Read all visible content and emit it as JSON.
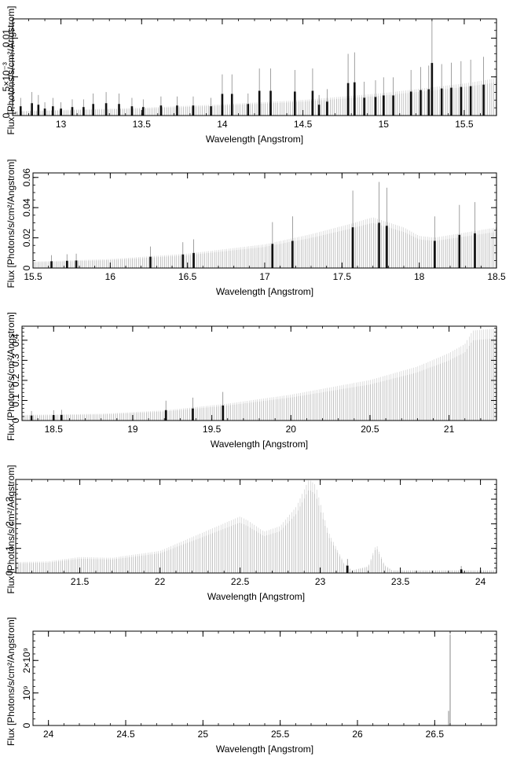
{
  "chart_data": [
    {
      "type": "bar",
      "xlabel": "Wavelength [Angstrom]",
      "ylabel": "Flux [Photons/s/cm²/Angstrom]",
      "xlim": [
        12.7,
        15.7
      ],
      "ylim": [
        0,
        0.0125
      ],
      "xticks": [
        13,
        13.5,
        14,
        14.5,
        15,
        15.5
      ],
      "xtick_labels": [
        "13",
        "13.5",
        "14",
        "14.5",
        "15",
        "15.5"
      ],
      "yticks": [
        0,
        0.005,
        0.01
      ],
      "ytick_labels": [
        "0",
        "5×10⁻³",
        "0.01"
      ],
      "x_minor_step": 0.1,
      "y_minor_step": 0.001,
      "continuum": [
        [
          12.7,
          0.0005
        ],
        [
          13.5,
          0.0009
        ],
        [
          14.0,
          0.0013
        ],
        [
          14.5,
          0.0018
        ],
        [
          15.0,
          0.0026
        ],
        [
          15.5,
          0.0037
        ],
        [
          15.7,
          0.0043
        ]
      ],
      "lines": [
        [
          12.75,
          0.0012
        ],
        [
          12.82,
          0.0016
        ],
        [
          12.86,
          0.0014
        ],
        [
          12.9,
          0.0009
        ],
        [
          12.95,
          0.0012
        ],
        [
          13.0,
          0.0009
        ],
        [
          13.07,
          0.0011
        ],
        [
          13.14,
          0.0011
        ],
        [
          13.2,
          0.0015
        ],
        [
          13.28,
          0.0016
        ],
        [
          13.36,
          0.0015
        ],
        [
          13.44,
          0.0012
        ],
        [
          13.51,
          0.0011
        ],
        [
          13.62,
          0.0013
        ],
        [
          13.72,
          0.0013
        ],
        [
          13.82,
          0.0013
        ],
        [
          13.93,
          0.0012
        ],
        [
          14.0,
          0.0028
        ],
        [
          14.06,
          0.0028
        ],
        [
          14.16,
          0.0015
        ],
        [
          14.23,
          0.0032
        ],
        [
          14.3,
          0.0032
        ],
        [
          14.45,
          0.0031
        ],
        [
          14.56,
          0.0032
        ],
        [
          14.6,
          0.0014
        ],
        [
          14.65,
          0.0018
        ],
        [
          14.78,
          0.0042
        ],
        [
          14.82,
          0.0043
        ],
        [
          14.88,
          0.0023
        ],
        [
          14.95,
          0.0024
        ],
        [
          15.0,
          0.0026
        ],
        [
          15.06,
          0.0026
        ],
        [
          15.17,
          0.0031
        ],
        [
          15.23,
          0.0033
        ],
        [
          15.28,
          0.0034
        ],
        [
          15.3,
          0.0068
        ],
        [
          15.36,
          0.0035
        ],
        [
          15.42,
          0.0036
        ],
        [
          15.48,
          0.0037
        ],
        [
          15.54,
          0.0038
        ],
        [
          15.62,
          0.004
        ]
      ]
    },
    {
      "type": "bar",
      "xlabel": "Wavelength [Angstrom]",
      "ylabel": "Flux [Photons/s/cm²/Angstrom]",
      "xlim": [
        15.5,
        18.5
      ],
      "ylim": [
        0,
        0.063
      ],
      "xticks": [
        15.5,
        16,
        16.5,
        17,
        17.5,
        18,
        18.5
      ],
      "xtick_labels": [
        "15.5",
        "16",
        "16.5",
        "17",
        "17.5",
        "18",
        "18.5"
      ],
      "yticks": [
        0,
        0.02,
        0.04,
        0.06
      ],
      "ytick_labels": [
        "0",
        "0.02",
        "0.04",
        "0.06"
      ],
      "x_minor_step": 0.1,
      "y_minor_step": 0.005,
      "continuum": [
        [
          15.5,
          0.0038
        ],
        [
          16.0,
          0.0053
        ],
        [
          16.5,
          0.0085
        ],
        [
          17.0,
          0.014
        ],
        [
          17.3,
          0.02
        ],
        [
          17.55,
          0.026
        ],
        [
          17.7,
          0.03
        ],
        [
          17.8,
          0.027
        ],
        [
          17.9,
          0.024
        ],
        [
          18.0,
          0.019
        ],
        [
          18.1,
          0.018
        ],
        [
          18.5,
          0.024
        ]
      ],
      "lines": [
        [
          15.62,
          0.0045
        ],
        [
          15.72,
          0.0048
        ],
        [
          15.78,
          0.005
        ],
        [
          16.26,
          0.0075
        ],
        [
          16.47,
          0.009
        ],
        [
          16.54,
          0.01
        ],
        [
          17.05,
          0.016
        ],
        [
          17.18,
          0.018
        ],
        [
          17.57,
          0.027
        ],
        [
          17.74,
          0.03
        ],
        [
          17.79,
          0.028
        ],
        [
          18.1,
          0.018
        ],
        [
          18.26,
          0.022
        ],
        [
          18.36,
          0.023
        ]
      ]
    },
    {
      "type": "bar",
      "xlabel": "Wavelength [Angstrom]",
      "ylabel": "Flux [Photons/s/cm²/Angstrom]",
      "xlim": [
        18.3,
        21.3
      ],
      "ylim": [
        0,
        0.47
      ],
      "xticks": [
        18.5,
        19,
        19.5,
        20,
        20.5,
        21
      ],
      "xtick_labels": [
        "18.5",
        "19",
        "19.5",
        "20",
        "20.5",
        "21"
      ],
      "yticks": [
        0,
        0.1,
        0.2,
        0.3,
        0.4
      ],
      "ytick_labels": [
        "0",
        "0.1",
        "0.2",
        "0.3",
        "0.4"
      ],
      "x_minor_step": 0.1,
      "y_minor_step": 0.02,
      "continuum": [
        [
          18.3,
          0.025
        ],
        [
          18.8,
          0.03
        ],
        [
          19.2,
          0.045
        ],
        [
          19.6,
          0.075
        ],
        [
          20.0,
          0.115
        ],
        [
          20.5,
          0.18
        ],
        [
          20.8,
          0.24
        ],
        [
          21.0,
          0.3
        ],
        [
          21.1,
          0.34
        ],
        [
          21.15,
          0.4
        ],
        [
          21.3,
          0.41
        ]
      ],
      "lines": [
        [
          18.36,
          0.025
        ],
        [
          18.5,
          0.027
        ],
        [
          18.55,
          0.028
        ],
        [
          19.21,
          0.052
        ],
        [
          19.38,
          0.06
        ],
        [
          19.57,
          0.075
        ]
      ]
    },
    {
      "type": "bar",
      "xlabel": "Wavelength [Angstrom]",
      "ylabel": "Flux [Photons/s/cm²/Angstrom]",
      "xlim": [
        21.1,
        24.1
      ],
      "ylim": [
        0,
        3.8
      ],
      "xticks": [
        21.5,
        22,
        22.5,
        23,
        23.5,
        24
      ],
      "xtick_labels": [
        "21.5",
        "22",
        "22.5",
        "23",
        "23.5",
        "24"
      ],
      "yticks": [
        0,
        1,
        2,
        3
      ],
      "ytick_labels": [
        "0",
        "1",
        "2",
        "3"
      ],
      "x_minor_step": 0.1,
      "y_minor_step": 0.2,
      "continuum": [
        [
          21.1,
          0.4
        ],
        [
          21.3,
          0.42
        ],
        [
          21.5,
          0.58
        ],
        [
          21.7,
          0.55
        ],
        [
          22.0,
          0.8
        ],
        [
          22.2,
          1.3
        ],
        [
          22.4,
          1.8
        ],
        [
          22.5,
          2.05
        ],
        [
          22.55,
          1.9
        ],
        [
          22.65,
          1.5
        ],
        [
          22.75,
          1.7
        ],
        [
          22.85,
          2.4
        ],
        [
          22.93,
          3.4
        ],
        [
          22.97,
          3.2
        ],
        [
          23.05,
          1.5
        ],
        [
          23.15,
          0.35
        ],
        [
          23.2,
          0.1
        ],
        [
          23.3,
          0.25
        ],
        [
          23.35,
          1.05
        ],
        [
          23.4,
          0.3
        ],
        [
          23.45,
          0.1
        ],
        [
          24.1,
          0.1
        ]
      ],
      "lines": [
        [
          23.17,
          0.3
        ],
        [
          23.88,
          0.15
        ]
      ]
    },
    {
      "type": "bar",
      "xlabel": "Wavelength [Angstrom]",
      "ylabel": "Flux [Photons/s/cm²/Angstrom]",
      "xlim": [
        23.9,
        26.9
      ],
      "ylim": [
        0,
        2900000000
      ],
      "xticks": [
        24,
        24.5,
        25,
        25.5,
        26,
        26.5
      ],
      "xtick_labels": [
        "24",
        "24.5",
        "25",
        "25.5",
        "26",
        "26.5"
      ],
      "yticks": [
        0,
        1000000000,
        2000000000
      ],
      "ytick_labels": [
        "0",
        "10⁹",
        "2×10⁹"
      ],
      "x_minor_step": 0.1,
      "y_minor_step": 200000000,
      "continuum": [
        [
          23.9,
          0
        ],
        [
          26.9,
          0
        ]
      ],
      "lines": [
        [
          26.59,
          450000000
        ],
        [
          26.6,
          2800000000
        ]
      ]
    }
  ]
}
